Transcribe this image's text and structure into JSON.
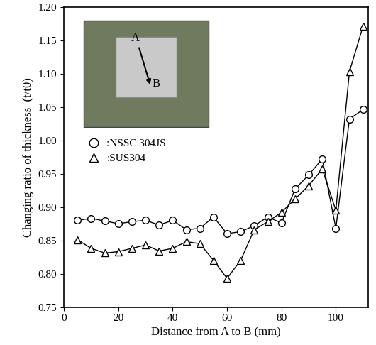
{
  "chart_data": {
    "type": "line",
    "x_label": "Distance from A to B (mm)",
    "y_label": "Changing ratio of thickness  (t/t0)",
    "x": [
      5,
      10,
      15,
      20,
      25,
      30,
      35,
      40,
      45,
      50,
      55,
      60,
      65,
      70,
      75,
      80,
      85,
      90,
      95,
      100,
      105,
      110
    ],
    "series": [
      {
        "name": ":NSSC 304JS",
        "color": "#000000",
        "marker": "circle",
        "values": [
          0.88,
          0.883,
          0.879,
          0.875,
          0.878,
          0.88,
          0.873,
          0.88,
          0.866,
          0.868,
          0.885,
          0.86,
          0.863,
          0.872,
          0.885,
          0.876,
          0.927,
          0.948,
          0.972,
          0.868,
          1.032,
          1.046
        ]
      },
      {
        "name": ":SUS304",
        "color": "#000000",
        "marker": "triangle",
        "values": [
          0.851,
          0.838,
          0.831,
          0.833,
          0.838,
          0.843,
          0.834,
          0.838,
          0.848,
          0.845,
          0.82,
          0.793,
          0.82,
          0.866,
          0.878,
          0.892,
          0.912,
          0.932,
          0.957,
          0.895,
          1.103,
          1.171
        ]
      }
    ],
    "xlim": [
      0,
      112
    ],
    "xticks": [
      0,
      20,
      40,
      60,
      80,
      100
    ],
    "ylim": [
      0.75,
      1.2
    ],
    "yticks": [
      0.75,
      {
        "value": 0.8,
        "label": "0.80"
      },
      0.85,
      {
        "value": 0.9,
        "label": "0.90"
      },
      0.95,
      {
        "value": 1.0,
        "label": "1.00"
      },
      1.05,
      {
        "value": 1.1,
        "label": "1.10"
      },
      1.15,
      {
        "value": 1.2,
        "label": "1.20"
      }
    ],
    "legend": "center left",
    "annotations": [
      "A",
      "B"
    ],
    "grid": false
  }
}
